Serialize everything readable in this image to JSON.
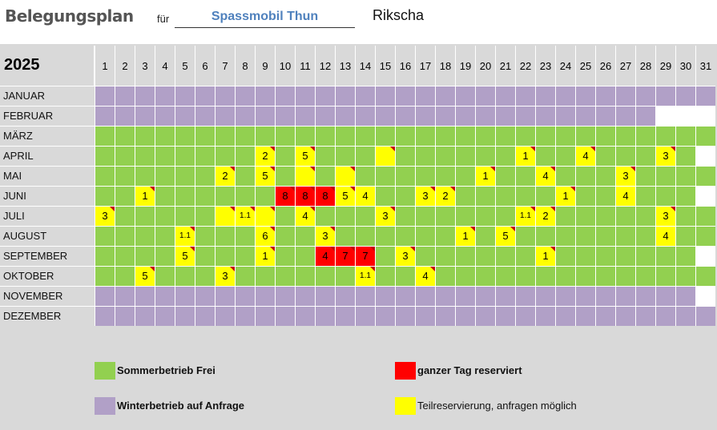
{
  "header": {
    "title": "Belegungsplan",
    "fuer": "für",
    "organisation": "Spassmobil Thun",
    "vehicle": "Rikscha"
  },
  "year": "2025",
  "days": [
    "1",
    "2",
    "3",
    "4",
    "5",
    "6",
    "7",
    "8",
    "9",
    "10",
    "11",
    "12",
    "13",
    "14",
    "15",
    "16",
    "17",
    "18",
    "19",
    "20",
    "21",
    "22",
    "23",
    "24",
    "25",
    "26",
    "27",
    "28",
    "29",
    "30",
    "31"
  ],
  "colors": {
    "free": "#92d050",
    "winter": "#b1a0c7",
    "partial": "#ffff00",
    "full": "#ff0000",
    "none": "#ffffff"
  },
  "months": [
    {
      "name": "JANUAR",
      "days": 31,
      "base": "winter",
      "marks": {}
    },
    {
      "name": "FEBRUAR",
      "days": 28,
      "base": "winter",
      "marks": {}
    },
    {
      "name": "MÄRZ",
      "days": 31,
      "base": "free",
      "marks": {}
    },
    {
      "name": "APRIL",
      "days": 30,
      "base": "free",
      "marks": {
        "9": {
          "s": "p",
          "t": "2",
          "c": 1
        },
        "11": {
          "s": "p",
          "t": "5",
          "c": 1
        },
        "15": {
          "s": "p",
          "t": "",
          "c": 1
        },
        "22": {
          "s": "p",
          "t": "1",
          "c": 1
        },
        "25": {
          "s": "p",
          "t": "4",
          "c": 1
        },
        "29": {
          "s": "p",
          "t": "3",
          "c": 1
        }
      }
    },
    {
      "name": "MAI",
      "days": 31,
      "base": "free",
      "marks": {
        "7": {
          "s": "p",
          "t": "2",
          "c": 1
        },
        "9": {
          "s": "p",
          "t": "5",
          "c": 1
        },
        "11": {
          "s": "p",
          "t": "",
          "c": 1
        },
        "13": {
          "s": "p",
          "t": "",
          "c": 1
        },
        "20": {
          "s": "p",
          "t": "1",
          "c": 1
        },
        "23": {
          "s": "p",
          "t": "4",
          "c": 1
        },
        "27": {
          "s": "p",
          "t": "3",
          "c": 1
        }
      }
    },
    {
      "name": "JUNI",
      "days": 30,
      "base": "free",
      "marks": {
        "3": {
          "s": "p",
          "t": "1",
          "c": 1
        },
        "10": {
          "s": "f",
          "t": "8",
          "c": 1
        },
        "11": {
          "s": "f",
          "t": "8",
          "c": 1
        },
        "12": {
          "s": "f",
          "t": "8",
          "c": 1
        },
        "13": {
          "s": "p",
          "t": "5",
          "c": 1
        },
        "14": {
          "s": "p",
          "t": "4",
          "c": 0
        },
        "17": {
          "s": "p",
          "t": "3",
          "c": 1
        },
        "18": {
          "s": "p",
          "t": "2",
          "c": 1
        },
        "24": {
          "s": "p",
          "t": "1",
          "c": 1
        },
        "27": {
          "s": "p",
          "t": "4",
          "c": 0
        }
      }
    },
    {
      "name": "JULI",
      "days": 31,
      "base": "free",
      "marks": {
        "1": {
          "s": "p",
          "t": "3",
          "c": 1
        },
        "7": {
          "s": "p",
          "t": "",
          "c": 1
        },
        "8": {
          "s": "p",
          "t": "1.1",
          "c": 1
        },
        "9": {
          "s": "p",
          "t": "",
          "c": 1
        },
        "11": {
          "s": "p",
          "t": "4",
          "c": 1
        },
        "15": {
          "s": "p",
          "t": "3",
          "c": 1
        },
        "22": {
          "s": "p",
          "t": "1.1",
          "c": 1
        },
        "23": {
          "s": "p",
          "t": "2",
          "c": 1
        },
        "29": {
          "s": "p",
          "t": "3",
          "c": 1
        }
      }
    },
    {
      "name": "AUGUST",
      "days": 31,
      "base": "free",
      "marks": {
        "5": {
          "s": "p",
          "t": "1.1",
          "c": 1
        },
        "9": {
          "s": "p",
          "t": "6",
          "c": 1
        },
        "12": {
          "s": "p",
          "t": "3",
          "c": 1
        },
        "19": {
          "s": "p",
          "t": "1",
          "c": 1
        },
        "21": {
          "s": "p",
          "t": "5",
          "c": 1
        },
        "29": {
          "s": "p",
          "t": "4",
          "c": 0
        }
      }
    },
    {
      "name": "SEPTEMBER",
      "days": 30,
      "base": "free",
      "marks": {
        "5": {
          "s": "p",
          "t": "5",
          "c": 1
        },
        "9": {
          "s": "p",
          "t": "1",
          "c": 1
        },
        "12": {
          "s": "f",
          "t": "4",
          "c": 1
        },
        "13": {
          "s": "f",
          "t": "7",
          "c": 1
        },
        "14": {
          "s": "f",
          "t": "7",
          "c": 1
        },
        "16": {
          "s": "p",
          "t": "3",
          "c": 1
        },
        "23": {
          "s": "p",
          "t": "1",
          "c": 1
        }
      }
    },
    {
      "name": "OKTOBER",
      "days": 31,
      "base": "free",
      "marks": {
        "3": {
          "s": "p",
          "t": "5",
          "c": 1
        },
        "7": {
          "s": "p",
          "t": "3",
          "c": 1
        },
        "14": {
          "s": "p",
          "t": "1.1",
          "c": 1
        },
        "17": {
          "s": "p",
          "t": "4",
          "c": 1
        }
      }
    },
    {
      "name": "NOVEMBER",
      "days": 30,
      "base": "winter",
      "marks": {}
    },
    {
      "name": "DEZEMBER",
      "days": 31,
      "base": "winter",
      "marks": {}
    }
  ],
  "legend": {
    "free": "Sommerbetrieb Frei",
    "winter": "Winterbetrieb auf Anfrage",
    "full": "ganzer Tag reserviert",
    "partial": "Teilreservierung, anfragen möglich"
  }
}
